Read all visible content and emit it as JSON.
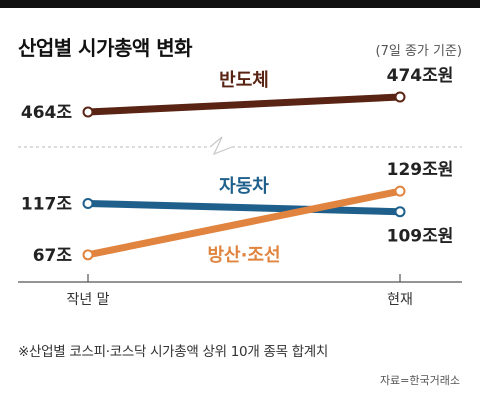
{
  "chart_data": {
    "type": "line",
    "title": "산업별 시가총액 변화",
    "subtitle": "(7일 종가 기준)",
    "note": "※산업별 코스피·코스닥 시가총액 상위 10개 종목 합계치",
    "source": "자료=한국거래소",
    "categories": [
      "작년 말",
      "현재"
    ],
    "axis_break": true,
    "series": [
      {
        "name": "반도체",
        "values": [
          464,
          474
        ],
        "labels": [
          "464조",
          "474조원"
        ],
        "color": "#5a2414"
      },
      {
        "name": "자동차",
        "values": [
          117,
          109
        ],
        "labels": [
          "117조",
          "109조원"
        ],
        "color": "#1f5f8b"
      },
      {
        "name": "방산·조선",
        "values": [
          67,
          129
        ],
        "labels": [
          "67조",
          "129조원"
        ],
        "color": "#e0843f"
      }
    ],
    "grid": false
  }
}
